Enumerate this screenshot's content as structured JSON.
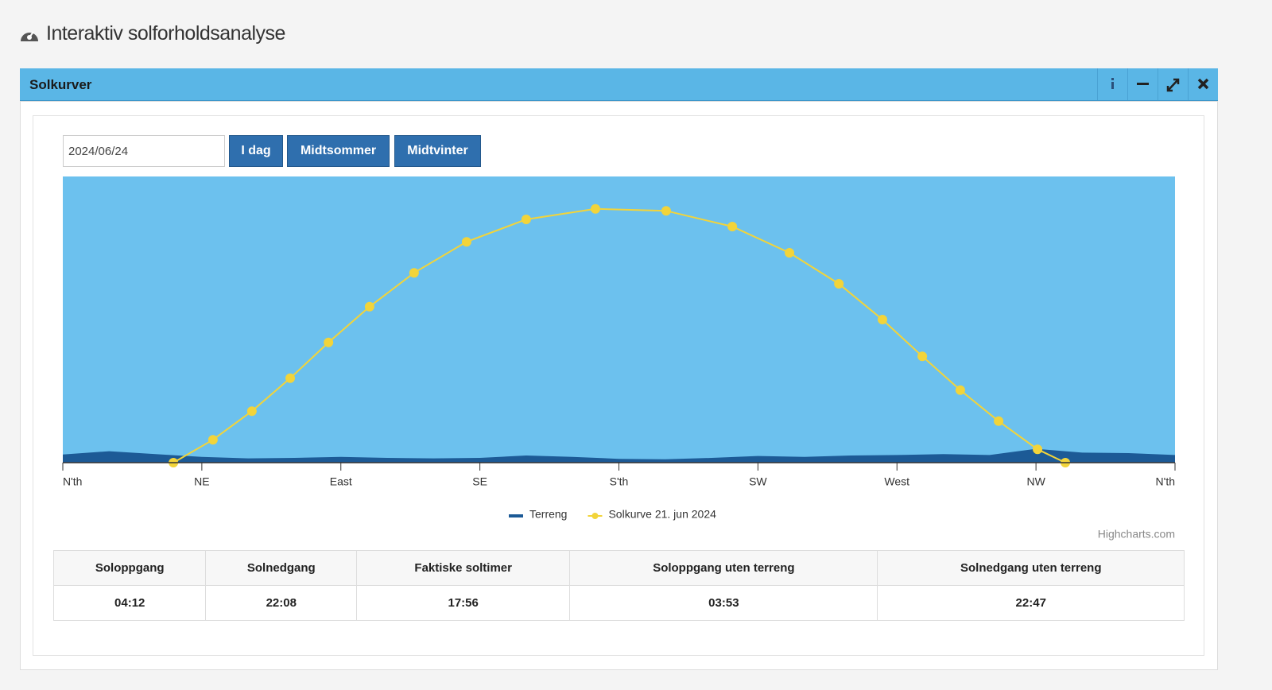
{
  "header": {
    "title": "Interaktiv solforholdsanalyse"
  },
  "panel": {
    "title": "Solkurver"
  },
  "controls": {
    "date": "2024/06/24",
    "buttons": [
      "I dag",
      "Midtsommer",
      "Midtvinter"
    ]
  },
  "chart_data": {
    "type": "line",
    "xlim": [
      0,
      360
    ],
    "xticks": [
      {
        "value": 0,
        "label": "N'th"
      },
      {
        "value": 45,
        "label": "NE"
      },
      {
        "value": 90,
        "label": "East"
      },
      {
        "value": 135,
        "label": "SE"
      },
      {
        "value": 180,
        "label": "S'th"
      },
      {
        "value": 225,
        "label": "SW"
      },
      {
        "value": 270,
        "label": "West"
      },
      {
        "value": 315,
        "label": "NW"
      },
      {
        "value": 360,
        "label": "N'th"
      }
    ],
    "ylim": [
      0,
      60
    ],
    "series": [
      {
        "name": "Terreng",
        "type": "area",
        "color": "#1c5a96",
        "x": [
          0,
          15,
          30,
          45,
          60,
          75,
          90,
          105,
          120,
          135,
          150,
          165,
          180,
          195,
          210,
          225,
          240,
          255,
          270,
          285,
          300,
          315,
          330,
          345,
          360
        ],
        "values": [
          1.7,
          2.4,
          1.8,
          1.2,
          0.9,
          1.0,
          1.2,
          1.0,
          0.9,
          1.0,
          1.5,
          1.2,
          0.8,
          0.7,
          1.0,
          1.4,
          1.2,
          1.5,
          1.6,
          1.8,
          1.6,
          2.9,
          2.1,
          2.0,
          1.6
        ]
      },
      {
        "name": "Solkurve 21. jun 2024",
        "type": "line",
        "color": "#f2d43a",
        "x": [
          35.8,
          48.6,
          61.2,
          73.6,
          86.0,
          99.3,
          113.7,
          130.7,
          150.0,
          172.4,
          195.3,
          216.7,
          235.2,
          251.2,
          265.3,
          278.2,
          290.5,
          302.9,
          315.5,
          324.5
        ],
        "values": [
          0,
          4.8,
          10.8,
          17.7,
          25.2,
          32.7,
          39.8,
          46.3,
          51.0,
          53.2,
          52.8,
          49.5,
          44.0,
          37.5,
          30.0,
          22.3,
          15.2,
          8.7,
          2.8,
          0
        ]
      }
    ],
    "plot_color": "#6cc1ee",
    "credit": "Highcharts.com"
  },
  "table": {
    "headers": [
      "Soloppgang",
      "Solnedgang",
      "Faktiske soltimer",
      "Soloppgang uten terreng",
      "Solnedgang uten terreng"
    ],
    "rows": [
      [
        "04:12",
        "22:08",
        "17:56",
        "03:53",
        "22:47"
      ]
    ]
  }
}
